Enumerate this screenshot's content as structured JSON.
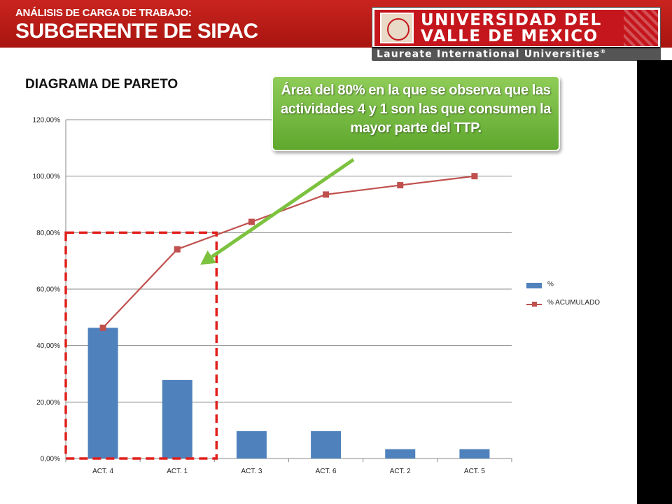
{
  "header": {
    "kicker": "ANÁLISIS DE CARGA DE TRABAJO:",
    "title": "SUBGERENTE DE SIPAC"
  },
  "logo": {
    "line1": "UNIVERSIDAD DEL",
    "line2": "VALLE DE MEXICO",
    "tagline": "Laureate International Universities",
    "registered": "®"
  },
  "colors": {
    "header_red": "#c4161c",
    "bar_blue": "#4f81bd",
    "line_red": "#c0504d",
    "callout_green": "#6fb83a",
    "highlight_dashed_red": "#e0201b"
  },
  "callout": {
    "text": "Área del 80% en la que se observa que las actividades 4 y 1 son las que consumen la mayor parte del TTP."
  },
  "chart_data": {
    "type": "bar",
    "title": "DIAGRAMA DE PARETO",
    "categories": [
      "ACT. 4",
      "ACT. 1",
      "ACT. 3",
      "ACT. 6",
      "ACT. 2",
      "ACT. 5"
    ],
    "series": [
      {
        "name": "%",
        "type": "bar",
        "values": [
          46.3,
          27.8,
          9.7,
          9.7,
          3.3,
          3.3
        ]
      },
      {
        "name": "% ACUMULADO",
        "type": "line",
        "values": [
          46.3,
          74.1,
          83.8,
          93.5,
          96.8,
          100.0
        ]
      }
    ],
    "ylim": [
      0,
      120
    ],
    "yticks": [
      "0,00%",
      "20,00%",
      "40,00%",
      "60,00%",
      "80,00%",
      "100,00%",
      "120,00%"
    ],
    "grid": true,
    "legend_position": "right",
    "highlight_region": {
      "categories": [
        "ACT. 4",
        "ACT. 1"
      ],
      "ymax": 80
    }
  }
}
